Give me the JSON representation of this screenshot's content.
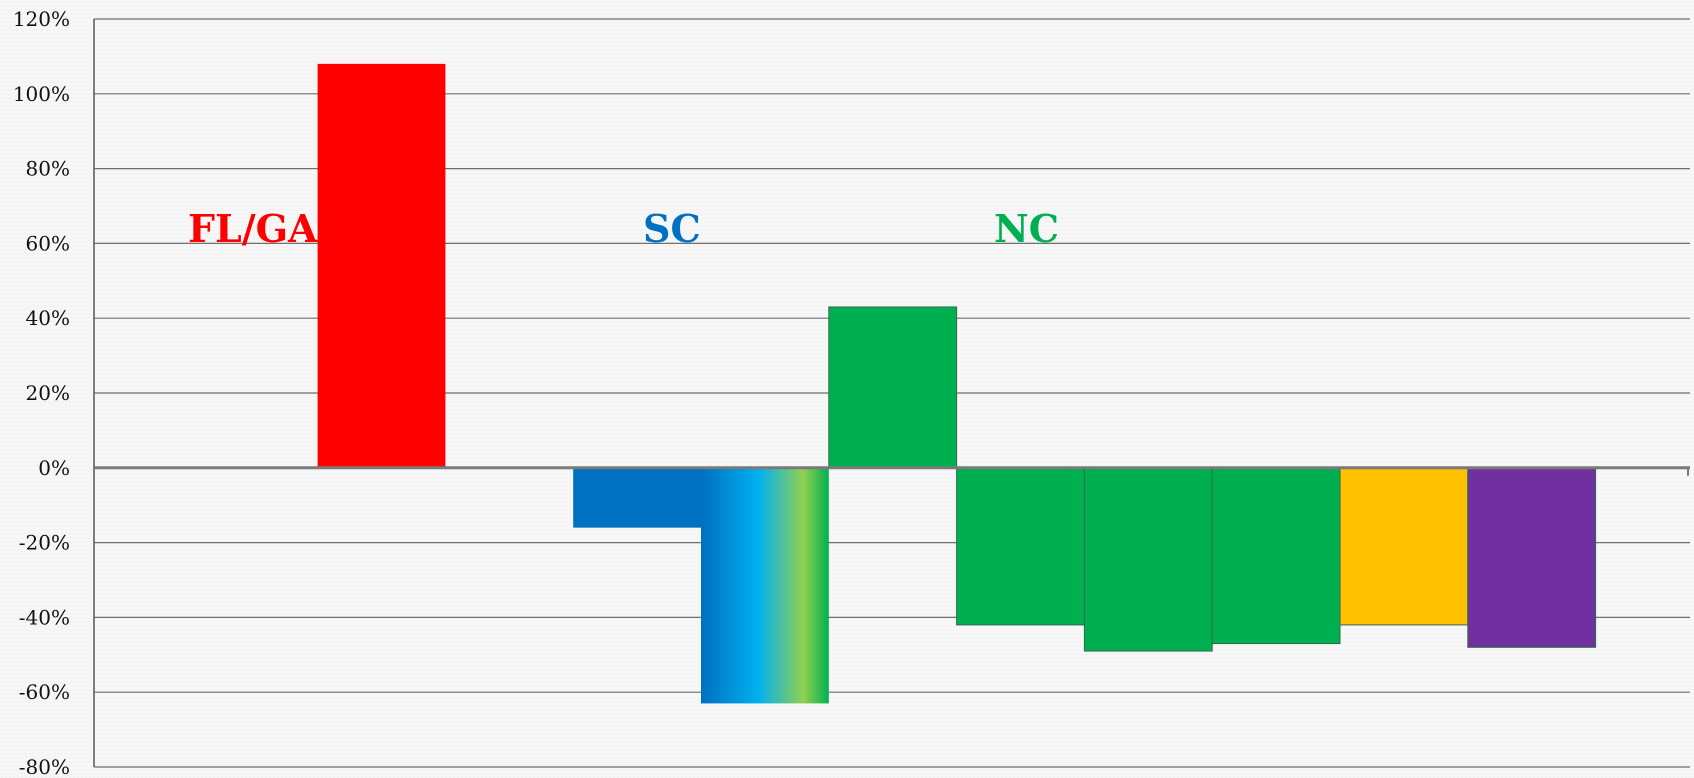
{
  "chart_data": {
    "type": "bar",
    "title": "",
    "xlabel": "",
    "ylabel": "",
    "ylim": [
      -80,
      120
    ],
    "yticks": [
      120,
      100,
      80,
      60,
      40,
      20,
      0,
      -20,
      -40,
      -60,
      -80
    ],
    "ytick_labels": [
      "120%",
      "100%",
      "80%",
      "60%",
      "40%",
      "20%",
      "0%",
      "-20%",
      "-40%",
      "-60%",
      "-80%"
    ],
    "grid": true,
    "legend": "none",
    "categories": [
      "",
      "",
      "",
      "",
      "",
      "",
      "",
      "",
      "",
      "",
      "",
      "",
      ""
    ],
    "values": [
      null,
      null,
      108,
      null,
      -16,
      -63,
      43,
      -42,
      -49,
      -47,
      -42,
      -48,
      null
    ],
    "bar_colors": [
      "",
      "",
      "#ff0000",
      "",
      "#0070c0",
      "gradient-blue-cyan-green",
      "#00b050",
      "#00b050",
      "#00b050",
      "#00b050",
      "#ffc000",
      "#7030a0",
      ""
    ],
    "annotations": [
      {
        "text": "FL/GA",
        "color": "#ff0000"
      },
      {
        "text": "SC",
        "color": "#0070c0"
      },
      {
        "text": "NC",
        "color": "#00b050"
      }
    ]
  }
}
